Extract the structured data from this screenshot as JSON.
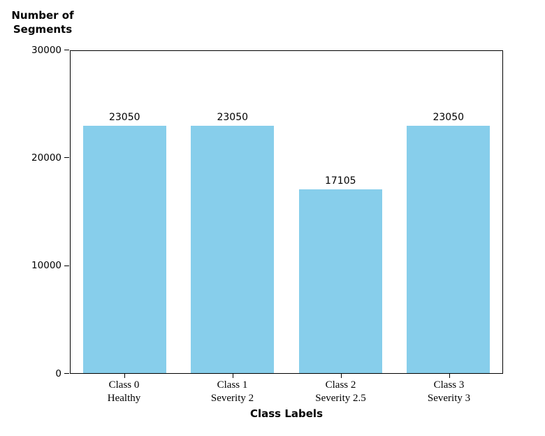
{
  "figure": {
    "y_axis_title": "Number of\nSegments",
    "x_axis_title": "Class Labels"
  },
  "chart_data": {
    "type": "bar",
    "title": "",
    "categories": [
      "Class 0\nHealthy",
      "Class 1\nSeverity 2",
      "Class 2\nSeverity 2.5",
      "Class 3\nSeverity 3"
    ],
    "values": [
      23050,
      23050,
      17105,
      23050
    ],
    "bar_labels": [
      "23050",
      "23050",
      "17105",
      "23050"
    ],
    "xlabel": "Class Labels",
    "ylabel": "Number of Segments",
    "ylim": [
      0,
      30000
    ],
    "yticks": [
      0,
      10000,
      20000,
      30000
    ],
    "bar_color": "#87CEEB",
    "text_color": "#000000",
    "spine_color": "#000000",
    "grid": false,
    "legend_position": "none"
  }
}
